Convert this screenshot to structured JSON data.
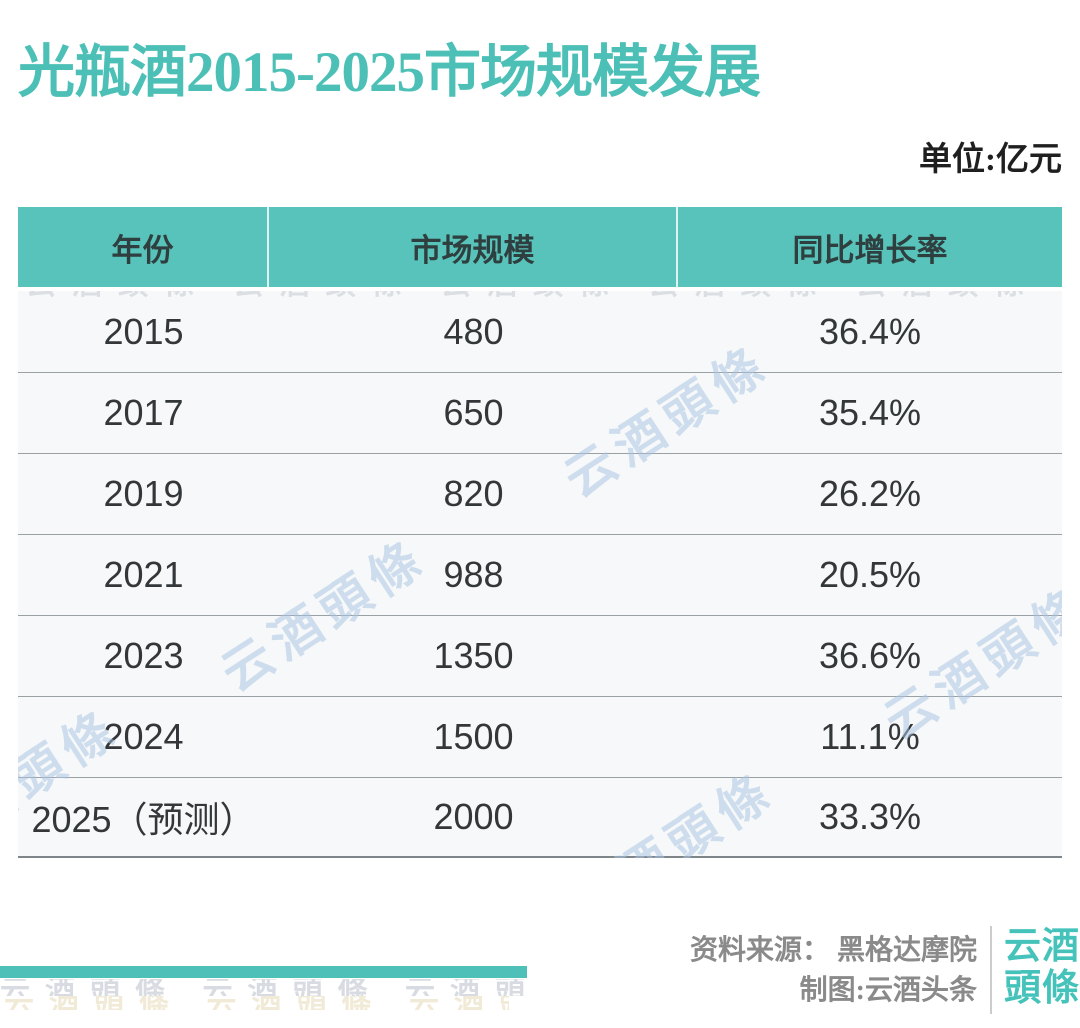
{
  "title": "光瓶酒2015-2025市场规模发展",
  "unit_label": "单位:亿元",
  "table": {
    "columns": [
      "年份",
      "市场规模",
      "同比增长率"
    ],
    "rows": [
      {
        "year": "2015",
        "scale": "480",
        "growth": "36.4%"
      },
      {
        "year": "2017",
        "scale": "650",
        "growth": "35.4%"
      },
      {
        "year": "2019",
        "scale": "820",
        "growth": "26.2%"
      },
      {
        "year": "2021",
        "scale": "988",
        "growth": "20.5%"
      },
      {
        "year": "2023",
        "scale": "1350",
        "growth": "36.6%"
      },
      {
        "year": "2024",
        "scale": "1500",
        "growth": "11.1%"
      },
      {
        "year": "2025（预测）",
        "scale": "2000",
        "growth": "33.3%"
      }
    ]
  },
  "watermark_text": "云酒頭條",
  "footer": {
    "source_label": "资料来源： 黑格达摩院",
    "credit_label": "制图:云酒头条",
    "logo_line1": "云酒",
    "logo_line2": "頭條"
  },
  "colors": {
    "header_teal": "#58C3BA",
    "title_teal": "#4CC0B6",
    "bar_teal": "#4FC0B8",
    "logo_teal": "#45C3BA",
    "row_background": "#F6F8F9",
    "body_text": "#33373A",
    "footer_text": "#8A8A8A",
    "watermark_blue": "#A8C4E2"
  },
  "chart_data": {
    "type": "table",
    "title": "光瓶酒2015-2025市场规模发展",
    "unit": "亿元",
    "columns": [
      "年份",
      "市场规模",
      "同比增长率"
    ],
    "categories": [
      "2015",
      "2017",
      "2019",
      "2021",
      "2023",
      "2024",
      "2025（预测）"
    ],
    "series": [
      {
        "name": "市场规模",
        "values": [
          480,
          650,
          820,
          988,
          1350,
          1500,
          2000
        ]
      },
      {
        "name": "同比增长率",
        "values": [
          "36.4%",
          "35.4%",
          "26.2%",
          "20.5%",
          "36.6%",
          "11.1%",
          "33.3%"
        ]
      }
    ]
  }
}
